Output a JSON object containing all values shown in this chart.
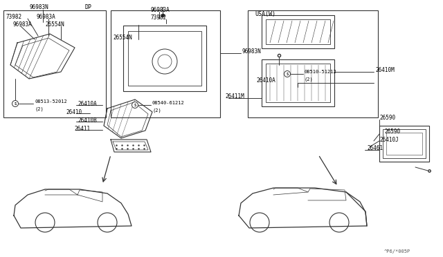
{
  "bg_color": "#ffffff",
  "line_color": "#333333",
  "text_color": "#000000",
  "fig_width": 6.4,
  "fig_height": 3.72,
  "watermark": "^P6/*005P",
  "labels": {
    "dp": "DP",
    "usa_w": "USA(W)",
    "96983N_top": "96983N",
    "73982_a": "73982",
    "96983A_a": "96983A",
    "96983A_b": "96983A",
    "26554N_a": "26554N",
    "08513": "08513-52012",
    "08513_qty": "(2)",
    "96983A_c": "96983A",
    "73982_b": "73982",
    "26554N_b": "26554N",
    "96983N_b": "96983N",
    "08540": "08540-61212",
    "08540_qty": "(2)",
    "08510": "08510-51212",
    "08510_qty": "(2)",
    "26410M": "26410M",
    "26410A_1": "26410A",
    "26411M": "26411M",
    "26590_1": "26590",
    "26410": "26410",
    "26410A_2": "26410A",
    "26410B": "26410B",
    "26411": "26411",
    "26590_2": "26590",
    "26410J": "26410J",
    "26461": "26461"
  }
}
